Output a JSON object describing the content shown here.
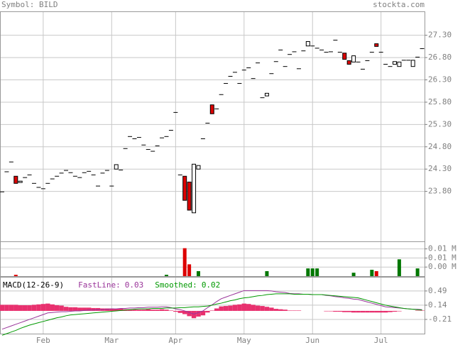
{
  "header": {
    "symbol": "Symbol: BILD",
    "site": "stockta.com"
  },
  "chart_data": [
    {
      "type": "candlestick",
      "categories": [
        null,
        null,
        null,
        null,
        null,
        null,
        null,
        null,
        null,
        "Feb",
        null,
        null,
        null,
        null,
        null,
        null,
        null,
        null,
        null,
        null,
        null,
        null,
        null,
        null,
        "Mar",
        null,
        null,
        null,
        null,
        null,
        null,
        null,
        null,
        null,
        null,
        null,
        null,
        null,
        "Apr",
        null,
        null,
        null,
        null,
        null,
        null,
        null,
        null,
        null,
        null,
        null,
        null,
        null,
        null,
        "May",
        null,
        null,
        null,
        null,
        null,
        null,
        null,
        null,
        null,
        null,
        null,
        null,
        null,
        null,
        "Jun",
        null,
        null,
        null,
        null,
        null,
        null,
        null,
        null,
        null,
        null,
        null,
        null,
        null,
        null,
        "Jul",
        null,
        null,
        null,
        null,
        null,
        null,
        null,
        null,
        null
      ],
      "open": [
        23.79,
        24.24,
        24.46,
        24.14,
        24.0,
        24.11,
        24.17,
        23.98,
        23.89,
        23.86,
        23.98,
        24.08,
        24.14,
        24.21,
        24.27,
        24.22,
        24.14,
        24.11,
        24.22,
        24.25,
        24.17,
        23.92,
        24.21,
        24.27,
        23.92,
        24.3,
        24.28,
        24.76,
        25.03,
        24.98,
        25.01,
        24.84,
        24.74,
        24.7,
        24.82,
        25.0,
        25.03,
        25.17,
        25.57,
        24.17,
        24.14,
        24.01,
        23.32,
        24.3,
        24.98,
        25.33,
        25.74,
        25.65,
        25.97,
        26.22,
        26.38,
        26.47,
        26.22,
        26.52,
        26.57,
        26.33,
        26.68,
        25.9,
        25.94,
        26.44,
        26.71,
        26.97,
        26.6,
        26.87,
        26.93,
        26.55,
        26.95,
        27.06,
        27.06,
        27.01,
        26.97,
        26.92,
        26.93,
        27.19,
        26.92,
        26.9,
        26.73,
        26.7,
        26.7,
        26.54,
        26.73,
        26.92,
        27.11,
        26.92,
        26.65,
        26.6,
        26.65,
        26.6,
        26.74,
        26.74,
        26.6,
        26.81,
        27.0
      ],
      "close": [
        23.79,
        24.24,
        24.46,
        23.98,
        24.03,
        24.11,
        24.17,
        23.98,
        23.89,
        23.86,
        23.98,
        24.08,
        24.14,
        24.21,
        24.27,
        24.22,
        24.14,
        24.11,
        24.22,
        24.25,
        24.17,
        23.92,
        24.21,
        24.27,
        23.92,
        24.4,
        24.28,
        24.76,
        25.03,
        24.98,
        25.01,
        24.84,
        24.74,
        24.7,
        24.82,
        25.0,
        25.03,
        25.17,
        25.57,
        24.17,
        23.6,
        23.38,
        24.41,
        24.38,
        24.98,
        25.33,
        25.54,
        25.65,
        25.97,
        26.22,
        26.38,
        26.47,
        26.22,
        26.52,
        26.57,
        26.33,
        26.68,
        25.9,
        26.0,
        26.44,
        26.71,
        26.97,
        26.6,
        26.87,
        26.93,
        26.55,
        26.95,
        27.16,
        27.06,
        27.01,
        26.97,
        26.92,
        26.93,
        27.19,
        26.92,
        26.76,
        26.65,
        26.84,
        26.7,
        26.54,
        26.73,
        26.92,
        27.05,
        26.92,
        26.65,
        26.6,
        26.71,
        26.7,
        26.74,
        26.74,
        26.74,
        26.81,
        27.0
      ],
      "up_color": "#ffffff",
      "down_color": "#dd0000",
      "ylim": [
        22.68,
        27.82
      ],
      "yticks": [
        {
          "value": 27.3,
          "label": "27.30"
        },
        {
          "value": 26.8,
          "label": "26.80"
        },
        {
          "value": 26.3,
          "label": "26.30"
        },
        {
          "value": 25.8,
          "label": "25.80"
        },
        {
          "value": 25.3,
          "label": "25.30"
        },
        {
          "value": 24.8,
          "label": "24.80"
        },
        {
          "value": 24.3,
          "label": "24.30"
        },
        {
          "value": 23.8,
          "label": "23.80"
        }
      ],
      "grid": true
    },
    {
      "type": "bar",
      "values": [
        0,
        0,
        0,
        0.0006,
        0,
        0,
        0,
        0,
        0,
        0,
        0,
        0,
        0,
        0,
        0,
        0,
        0,
        0,
        0,
        0,
        0,
        0,
        0,
        0,
        0,
        0,
        0,
        0,
        0,
        0,
        0,
        0,
        0,
        0,
        0,
        0,
        0.0006,
        0,
        0,
        0,
        0.0123,
        0.0052,
        0,
        0.0022,
        0,
        0,
        0,
        0,
        0,
        0,
        0,
        0,
        0,
        0,
        0,
        0,
        0,
        0,
        0.0022,
        0,
        0,
        0,
        0,
        0,
        0,
        0,
        0,
        0.0034,
        0.0034,
        0.0034,
        0,
        0,
        0,
        0,
        0,
        0,
        0,
        0.0015,
        0,
        0,
        0,
        0.0028,
        0.0022,
        0,
        0,
        0,
        0,
        0.0074,
        0,
        0,
        0,
        0.0034,
        0
      ],
      "up_color": "#007700",
      "down_color": "#dd0000",
      "ylim": [
        0,
        0.015
      ],
      "yticks": [
        {
          "value": 0.012,
          "label": "0.01 M"
        },
        {
          "value": 0.008,
          "label": "0.01 M"
        },
        {
          "value": 0.004,
          "label": "0.00 M"
        }
      ]
    },
    {
      "type": "macd",
      "title": "MACD(12-26-9)",
      "series": [
        {
          "name": "FastLine:",
          "current": 0.03,
          "color": "#993399",
          "values": [
            -0.45,
            -0.41,
            -0.37,
            -0.33,
            -0.29,
            -0.25,
            -0.21,
            -0.17,
            -0.13,
            -0.09,
            -0.05,
            -0.04,
            -0.03,
            -0.02,
            -0.02,
            -0.01,
            0.0,
            0.0,
            0.01,
            0.02,
            0.02,
            0.03,
            0.03,
            0.04,
            0.05,
            0.05,
            0.06,
            0.06,
            0.07,
            0.07,
            0.08,
            0.08,
            0.09,
            0.09,
            0.09,
            0.1,
            0.1,
            0.08,
            0.05,
            0.03,
            0.0,
            -0.04,
            -0.08,
            -0.04,
            0.0,
            0.08,
            0.15,
            0.23,
            0.3,
            0.34,
            0.38,
            0.42,
            0.46,
            0.5,
            0.5,
            0.5,
            0.5,
            0.5,
            0.5,
            0.49,
            0.47,
            0.46,
            0.45,
            0.43,
            0.42,
            0.42,
            0.41,
            0.41,
            0.4,
            0.4,
            0.4,
            0.38,
            0.37,
            0.35,
            0.34,
            0.32,
            0.31,
            0.29,
            0.28,
            0.25,
            0.22,
            0.19,
            0.16,
            0.13,
            0.1,
            0.09,
            0.08,
            0.07,
            0.06,
            0.05,
            0.04,
            0.04,
            0.03
          ]
        },
        {
          "name": "Smoothed:",
          "current": 0.02,
          "color": "#009900",
          "values": [
            -0.6,
            -0.56,
            -0.52,
            -0.48,
            -0.43,
            -0.39,
            -0.35,
            -0.32,
            -0.29,
            -0.26,
            -0.23,
            -0.2,
            -0.17,
            -0.15,
            -0.12,
            -0.1,
            -0.09,
            -0.08,
            -0.07,
            -0.06,
            -0.05,
            -0.04,
            -0.03,
            -0.02,
            -0.01,
            0.0,
            0.01,
            0.02,
            0.03,
            0.04,
            0.05,
            0.05,
            0.05,
            0.06,
            0.06,
            0.06,
            0.07,
            0.07,
            0.07,
            0.08,
            0.08,
            0.09,
            0.1,
            0.1,
            0.11,
            0.12,
            0.14,
            0.17,
            0.19,
            0.22,
            0.25,
            0.27,
            0.3,
            0.32,
            0.33,
            0.35,
            0.37,
            0.38,
            0.4,
            0.41,
            0.42,
            0.42,
            0.42,
            0.42,
            0.41,
            0.41,
            0.41,
            0.41,
            0.4,
            0.4,
            0.4,
            0.39,
            0.38,
            0.37,
            0.36,
            0.35,
            0.34,
            0.33,
            0.32,
            0.29,
            0.26,
            0.23,
            0.2,
            0.17,
            0.14,
            0.12,
            0.1,
            0.08,
            0.06,
            0.05,
            0.04,
            0.03,
            0.02
          ]
        }
      ],
      "histogram_color": "#e8306e",
      "ylim": [
        -0.56,
        0.82
      ],
      "yticks": [
        0.49,
        0.14,
        -0.21
      ]
    }
  ]
}
